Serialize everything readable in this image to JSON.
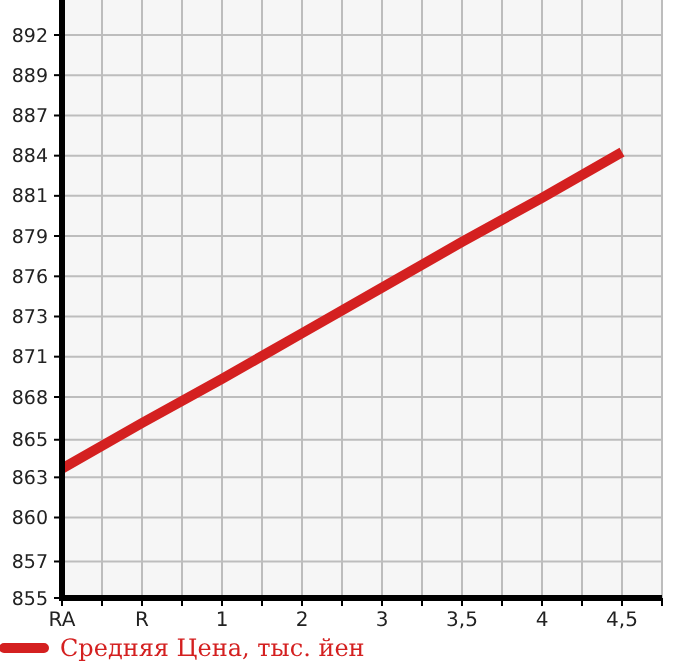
{
  "chart_data": {
    "type": "line",
    "categories": [
      "RA",
      "R",
      "1",
      "2",
      "3",
      "3,5",
      "4",
      "4,5"
    ],
    "series": [
      {
        "name": "Средняя Цена, тыс. йен",
        "color": "#d42020",
        "values": [
          863.5,
          866.5,
          869.4,
          872.4,
          875.4,
          878.4,
          881.3,
          884.3
        ]
      }
    ],
    "ylim": [
      855,
      894.3
    ],
    "yticks": [
      855,
      {
        "value": 857.4,
        "label": "857"
      },
      {
        "value": 860.29,
        "label": "860"
      },
      {
        "value": 862.93,
        "label": "863"
      },
      {
        "value": 865.4,
        "label": "865"
      },
      {
        "value": 868.21,
        "label": "868"
      },
      {
        "value": 870.86,
        "label": "871"
      },
      {
        "value": 873.5,
        "label": "873"
      },
      {
        "value": 876.14,
        "label": "876"
      },
      {
        "value": 878.79,
        "label": "879"
      },
      {
        "value": 881.43,
        "label": "881"
      },
      {
        "value": 884.07,
        "label": "884"
      },
      {
        "value": 886.71,
        "label": "887"
      },
      {
        "value": 889.36,
        "label": "889"
      },
      892
    ],
    "grid": true,
    "legend": "bottom",
    "marker": "none",
    "line_style": "solid"
  }
}
